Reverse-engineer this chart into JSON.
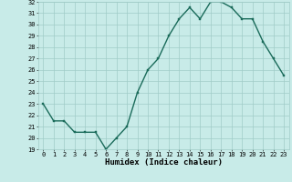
{
  "x": [
    0,
    1,
    2,
    3,
    4,
    5,
    6,
    7,
    8,
    9,
    10,
    11,
    12,
    13,
    14,
    15,
    16,
    17,
    18,
    19,
    20,
    21,
    22,
    23
  ],
  "y": [
    23.0,
    21.5,
    21.5,
    20.5,
    20.5,
    20.5,
    19.0,
    20.0,
    21.0,
    24.0,
    26.0,
    27.0,
    29.0,
    30.5,
    31.5,
    30.5,
    32.0,
    32.0,
    31.5,
    30.5,
    30.5,
    28.5,
    27.0,
    25.5
  ],
  "line_color": "#1a6b5a",
  "marker": "s",
  "marker_size": 1.8,
  "bg_color": "#c8ebe8",
  "grid_color": "#a0ccc8",
  "xlabel": "Humidex (Indice chaleur)",
  "ylim": [
    19,
    32
  ],
  "xlim": [
    -0.5,
    23.5
  ],
  "yticks": [
    19,
    20,
    21,
    22,
    23,
    24,
    25,
    26,
    27,
    28,
    29,
    30,
    31,
    32
  ],
  "xticks": [
    0,
    1,
    2,
    3,
    4,
    5,
    6,
    7,
    8,
    9,
    10,
    11,
    12,
    13,
    14,
    15,
    16,
    17,
    18,
    19,
    20,
    21,
    22,
    23
  ],
  "tick_fontsize": 5.0,
  "xlabel_fontsize": 6.5,
  "line_width": 1.0
}
